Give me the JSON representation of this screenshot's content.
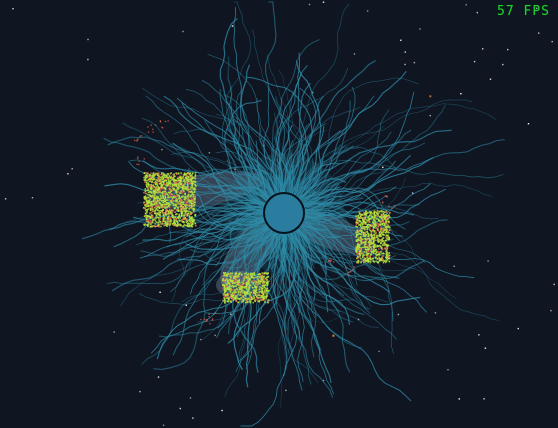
{
  "hud": {
    "fps_text": "57 FPS"
  },
  "colors": {
    "background": "#0f1521",
    "tendril": "#2f8ca8",
    "core": "#2a7d9e",
    "core_outline": "#06121c",
    "haze": "#8aa9c3",
    "fungus_green": "#b8e43c",
    "fungus_red": "#e0604d",
    "star": "#ffffff",
    "spark": "#ff9a3c",
    "fps_green": "#1fd22c"
  },
  "icons": {
    "core": "central-core-circle",
    "colony": "particle-colony-cluster",
    "star": "star-dot",
    "tendril": "tendril-strand"
  }
}
